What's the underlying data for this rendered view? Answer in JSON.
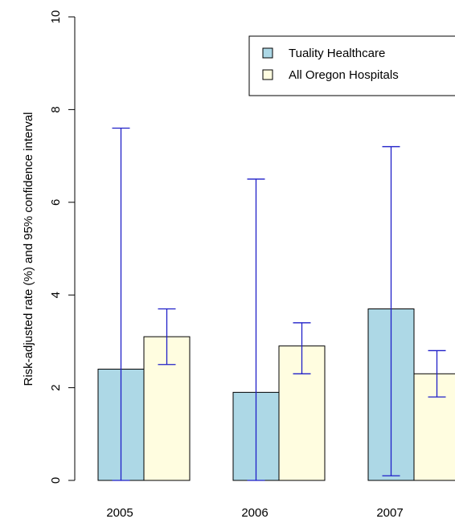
{
  "chart_data": {
    "type": "bar",
    "title": "",
    "xlabel": "",
    "ylabel": "Risk-adjusted rate (%) and 95% confidence interval",
    "ylim": [
      0,
      10
    ],
    "yticks": [
      "0",
      "2",
      "4",
      "6",
      "8",
      "10"
    ],
    "categories": [
      "2005",
      "2006",
      "2007"
    ],
    "series": [
      {
        "name": "Tuality Healthcare",
        "color": "#add8e6",
        "values": [
          2.4,
          1.9,
          3.7
        ],
        "ci_low": [
          0.0,
          0.0,
          0.1
        ],
        "ci_high": [
          7.6,
          6.5,
          7.2
        ]
      },
      {
        "name": "All Oregon Hospitals",
        "color": "#fffde0",
        "values": [
          3.1,
          2.9,
          2.3
        ],
        "ci_low": [
          2.5,
          2.3,
          1.8
        ],
        "ci_high": [
          3.7,
          3.4,
          2.8
        ]
      }
    ],
    "error_bar_color": "#1f1fc8",
    "grid": false,
    "legend_position": "top-right"
  }
}
